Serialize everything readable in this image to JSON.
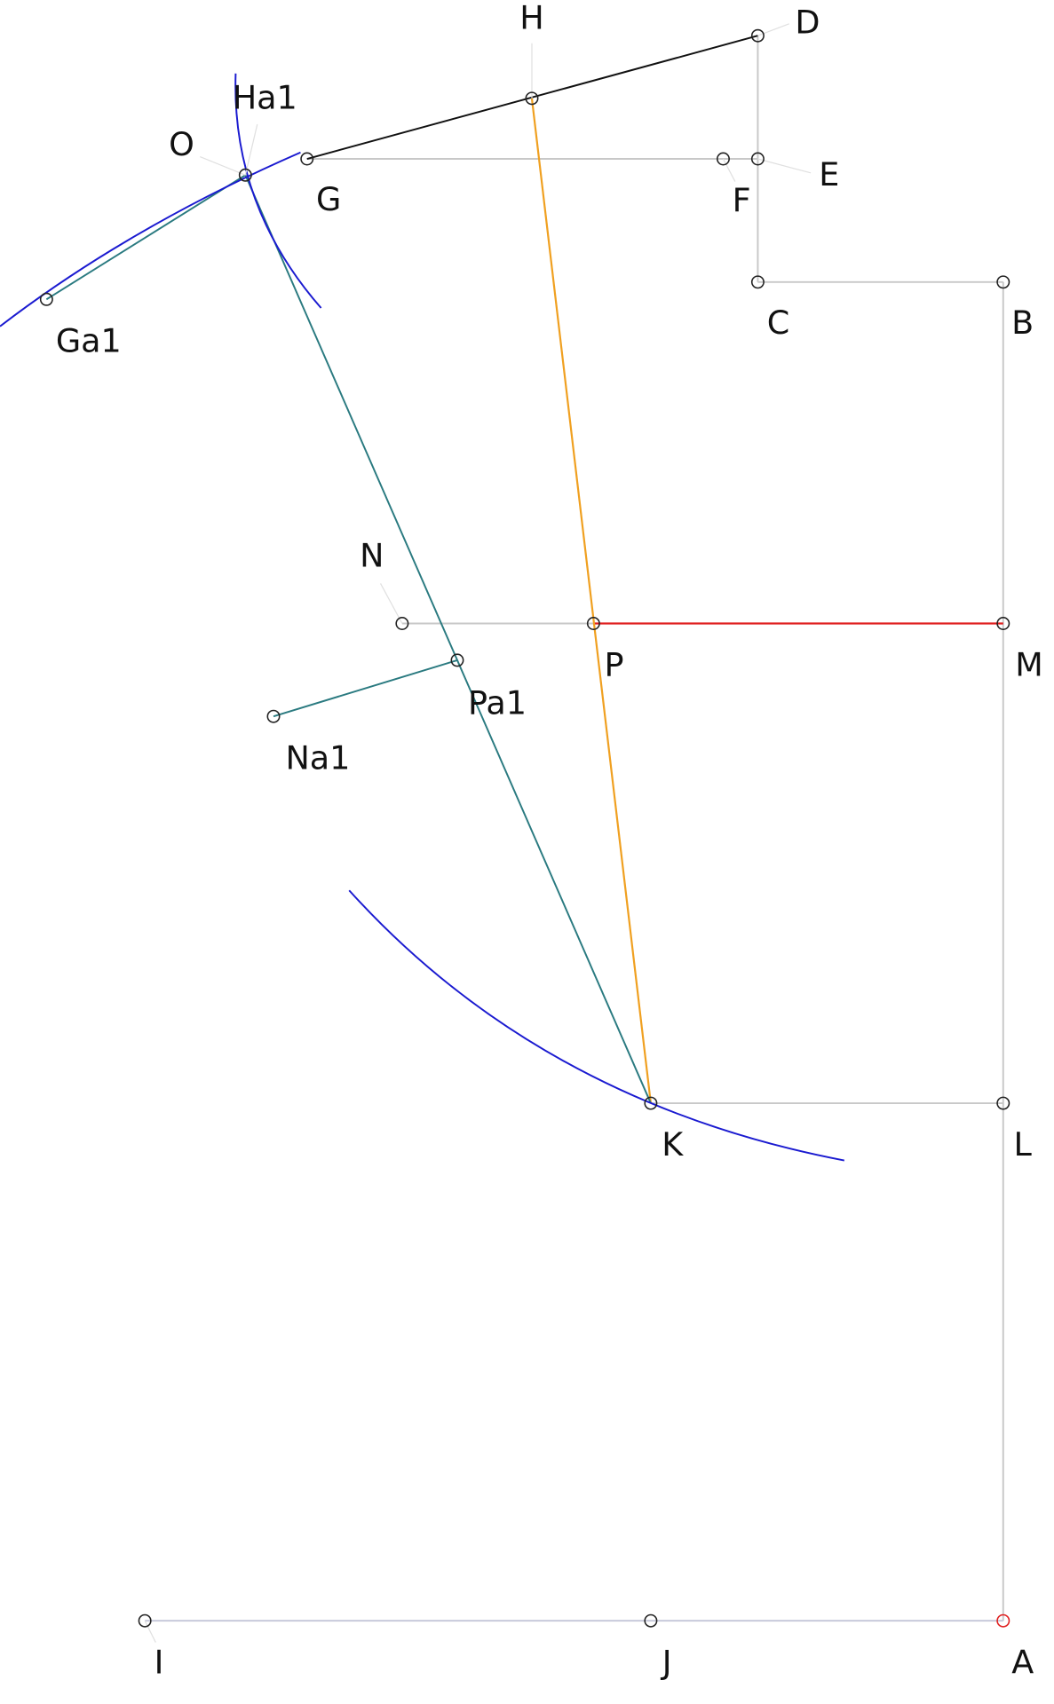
{
  "nodes": [
    {
      "label": "D"
    },
    {
      "label": "H"
    },
    {
      "label": "Ha1"
    },
    {
      "label": "O"
    },
    {
      "label": "G"
    },
    {
      "label": "F"
    },
    {
      "label": "E"
    },
    {
      "label": "C"
    },
    {
      "label": "B"
    },
    {
      "label": "Ga1"
    },
    {
      "label": "N"
    },
    {
      "label": "P"
    },
    {
      "label": "M"
    },
    {
      "label": "Pa1"
    },
    {
      "label": "Na1"
    },
    {
      "label": "K"
    },
    {
      "label": "L"
    },
    {
      "label": "I"
    },
    {
      "label": "J"
    },
    {
      "label": "A"
    }
  ]
}
